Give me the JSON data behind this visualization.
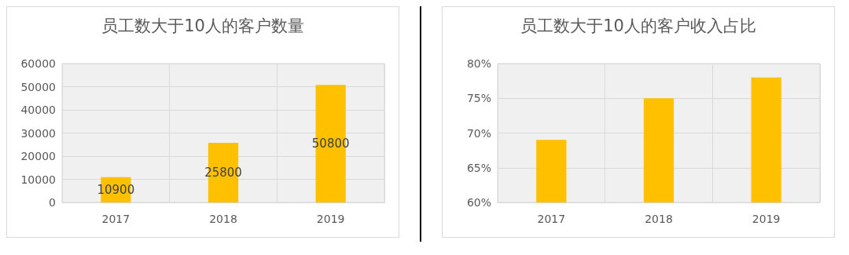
{
  "chart_data": [
    {
      "type": "bar",
      "title": "员工数大于10人的客户数量",
      "categories": [
        "2017",
        "2018",
        "2019"
      ],
      "values": [
        10900,
        25800,
        50800
      ],
      "color": "#ffc000",
      "ylim": [
        0,
        60000
      ],
      "yticks": [
        0,
        10000,
        20000,
        30000,
        40000,
        50000,
        60000
      ],
      "grid": true,
      "data_labels": true
    },
    {
      "type": "bar",
      "title": "员工数大于10人的客户收入占比",
      "categories": [
        "2017",
        "2018",
        "2019"
      ],
      "values": [
        69,
        75,
        78
      ],
      "color": "#ffc000",
      "ylim": [
        60,
        80
      ],
      "yticks": [
        {
          "value": 60,
          "label": "60%"
        },
        {
          "value": 65,
          "label": "65%"
        },
        {
          "value": 70,
          "label": "70%"
        },
        {
          "value": 75,
          "label": "75%"
        },
        {
          "value": 80,
          "label": "80%"
        }
      ],
      "grid": true
    }
  ]
}
